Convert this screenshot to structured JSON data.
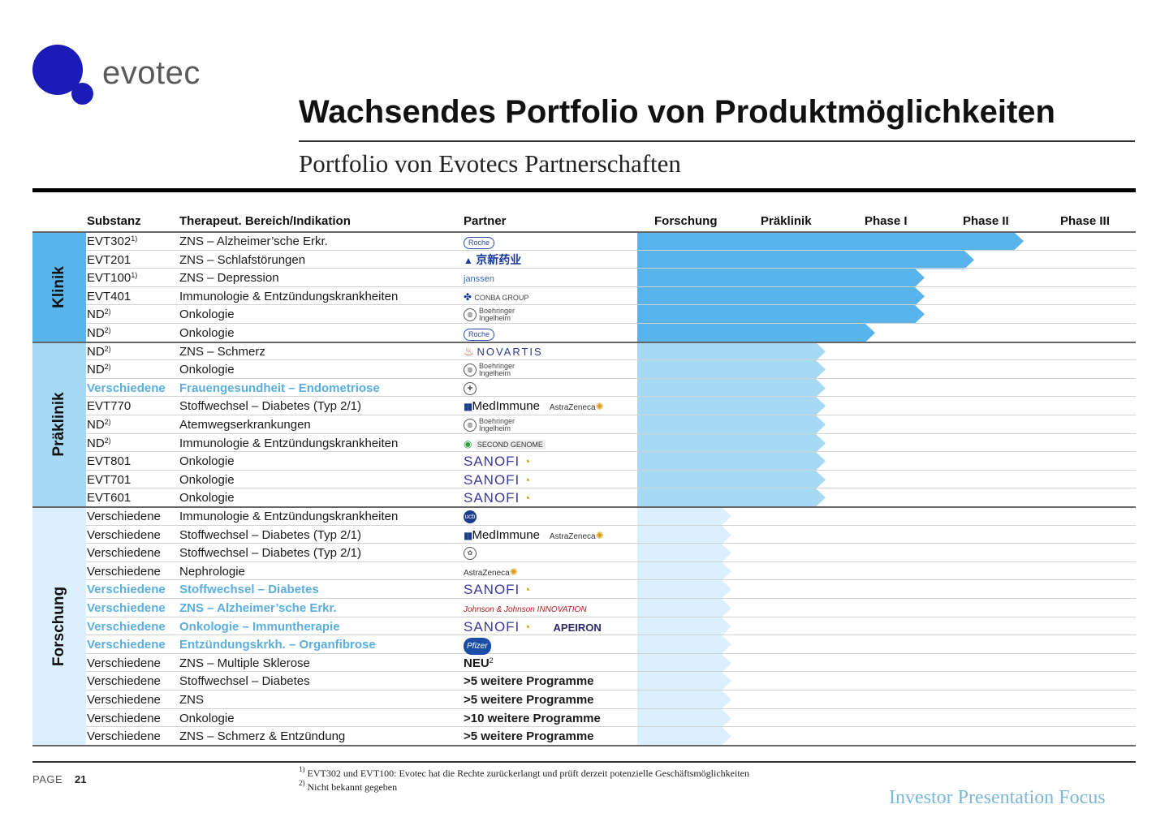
{
  "logo": {
    "text": "evotec",
    "color": "#1b1bb8"
  },
  "title": "Wachsendes Portfolio von Produktmöglichkeiten",
  "subtitle": "Portfolio von Evotecs Partnerschaften",
  "columns": {
    "substanz": "Substanz",
    "bereich": "Therapeut.  Bereich/Indikation",
    "partner": "Partner",
    "forschung": "Forschung",
    "praeklinik": "Präklinik",
    "phase1": "Phase I",
    "phase2": "Phase II",
    "phase3": "Phase III"
  },
  "phase_scale": [
    "Forschung",
    "Präklinik",
    "Phase I",
    "Phase II",
    "Phase III"
  ],
  "colors": {
    "klinik": "#59b4ec",
    "praeklinik": "#a6d9f4",
    "forschung": "#dbeffc",
    "highlight": "#5aaee0"
  },
  "sections": [
    {
      "label": "Klinik",
      "key": "klinik"
    },
    {
      "label": "Präklinik",
      "key": "praeklinik"
    },
    {
      "label": "Forschung",
      "key": "forschung"
    }
  ],
  "rows": [
    {
      "section": "klinik",
      "substanz": "EVT302",
      "sup": "1)",
      "bereich": "ZNS – Alzheimer’sche Erkr.",
      "partner": "Roche",
      "partner_style": "roche",
      "progress": 3.9,
      "highlight": false
    },
    {
      "section": "klinik",
      "substanz": "EVT201",
      "sup": "",
      "bereich": "ZNS – Schlafstörungen",
      "partner": "京新药业",
      "partner_style": "jingxin",
      "progress": 3.4,
      "highlight": false
    },
    {
      "section": "klinik",
      "substanz": "EVT100",
      "sup": "1)",
      "bereich": "ZNS – Depression",
      "partner": "janssen",
      "partner_style": "janssen",
      "progress": 2.9,
      "highlight": false
    },
    {
      "section": "klinik",
      "substanz": "EVT401",
      "sup": "",
      "bereich": "Immunologie & Entzündungskrankheiten",
      "partner": "CONBA GROUP",
      "partner_style": "conba",
      "progress": 2.9,
      "highlight": false
    },
    {
      "section": "klinik",
      "substanz": "ND",
      "sup": "2)",
      "bereich": "Onkologie",
      "partner": "Boehringer Ingelheim",
      "partner_style": "bi",
      "progress": 2.9,
      "highlight": false
    },
    {
      "section": "klinik",
      "substanz": "ND",
      "sup": "2)",
      "bereich": "Onkologie",
      "partner": "Roche",
      "partner_style": "roche",
      "progress": 2.4,
      "highlight": false
    },
    {
      "section": "praeklinik",
      "substanz": "ND",
      "sup": "2)",
      "bereich": "ZNS – Schmerz",
      "partner": "NOVARTIS",
      "partner_style": "novartis",
      "progress": 1.9,
      "highlight": false
    },
    {
      "section": "praeklinik",
      "substanz": "ND",
      "sup": "2)",
      "bereich": "Onkologie",
      "partner": "Boehringer Ingelheim",
      "partner_style": "bi",
      "progress": 1.9,
      "highlight": false
    },
    {
      "section": "praeklinik",
      "substanz": "Verschiedene",
      "sup": "",
      "bereich": "Frauengesundheit – Endometriose",
      "partner": "Bayer",
      "partner_style": "bayer",
      "progress": 1.9,
      "highlight": true
    },
    {
      "section": "praeklinik",
      "substanz": "EVT770",
      "sup": "",
      "bereich": "Stoffwechsel – Diabetes (Typ 2/1)",
      "partner": "MedImmune",
      "partner2": "AstraZeneca",
      "partner_style": "medaz",
      "progress": 1.9,
      "highlight": false
    },
    {
      "section": "praeklinik",
      "substanz": "ND",
      "sup": "2)",
      "bereich": "Atemwegserkrankungen",
      "partner": "Boehringer Ingelheim",
      "partner_style": "bi",
      "progress": 1.9,
      "highlight": false
    },
    {
      "section": "praeklinik",
      "substanz": "ND",
      "sup": "2)",
      "bereich": "Immunologie & Entzündungskrankheiten",
      "partner": "SECOND GENOME",
      "partner_style": "second",
      "progress": 1.9,
      "highlight": false
    },
    {
      "section": "praeklinik",
      "substanz": "EVT801",
      "sup": "",
      "bereich": "Onkologie",
      "partner": "SANOFI",
      "partner_style": "sanofi",
      "progress": 1.9,
      "highlight": false
    },
    {
      "section": "praeklinik",
      "substanz": "EVT701",
      "sup": "",
      "bereich": "Onkologie",
      "partner": "SANOFI",
      "partner_style": "sanofi",
      "progress": 1.9,
      "highlight": false
    },
    {
      "section": "praeklinik",
      "substanz": "EVT601",
      "sup": "",
      "bereich": "Onkologie",
      "partner": "SANOFI",
      "partner_style": "sanofi",
      "progress": 1.9,
      "highlight": false
    },
    {
      "section": "forschung",
      "substanz": "Verschiedene",
      "sup": "",
      "bereich": "Immunologie & Entzündungskrankheiten",
      "partner": "ucb",
      "partner_style": "ucb",
      "progress": 0.95,
      "highlight": false
    },
    {
      "section": "forschung",
      "substanz": "Verschiedene",
      "sup": "",
      "bereich": "Stoffwechsel – Diabetes (Typ 2/1)",
      "partner": "MedImmune",
      "partner2": "AstraZeneca",
      "partner_style": "medaz",
      "progress": 0.95,
      "highlight": false
    },
    {
      "section": "forschung",
      "substanz": "Verschiedene",
      "sup": "",
      "bereich": "Stoffwechsel – Diabetes (Typ 2/1)",
      "partner": "",
      "partner_style": "seal",
      "progress": 0.95,
      "highlight": false
    },
    {
      "section": "forschung",
      "substanz": "Verschiedene",
      "sup": "",
      "bereich": "Nephrologie",
      "partner": "AstraZeneca",
      "partner_style": "az",
      "progress": 0.95,
      "highlight": false
    },
    {
      "section": "forschung",
      "substanz": "Verschiedene",
      "sup": "",
      "bereich": "Stoffwechsel – Diabetes",
      "partner": "SANOFI",
      "partner_style": "sanofi",
      "progress": 0.95,
      "highlight": true
    },
    {
      "section": "forschung",
      "substanz": "Verschiedene",
      "sup": "",
      "bereich": "ZNS – Alzheimer’sche Erkr.",
      "partner": "Johnson & Johnson INNOVATION",
      "partner_style": "jj",
      "progress": 0.95,
      "highlight": true
    },
    {
      "section": "forschung",
      "substanz": "Verschiedene",
      "sup": "",
      "bereich": "Onkologie – Immuntherapie",
      "partner": "SANOFI",
      "partner2": "APEIRON",
      "partner_style": "sanofi_apeiron",
      "progress": 0.95,
      "highlight": true
    },
    {
      "section": "forschung",
      "substanz": "Verschiedene",
      "sup": "",
      "bereich": "Entzündungskrkh. – Organfibrose",
      "partner": "Pfizer",
      "partner_style": "pfizer",
      "progress": 0.95,
      "highlight": true
    },
    {
      "section": "forschung",
      "substanz": "Verschiedene",
      "sup": "",
      "bereich": "ZNS – Multiple Sklerose",
      "partner": "NEU",
      "partner_sup": "2",
      "partner_style": "bold",
      "progress": 0.95,
      "highlight": false
    },
    {
      "section": "forschung",
      "substanz": "Verschiedene",
      "sup": "",
      "bereich": "Stoffwechsel – Diabetes",
      "partner": ">5 weitere Programme",
      "partner_style": "bold",
      "progress": 0.95,
      "highlight": false
    },
    {
      "section": "forschung",
      "substanz": "Verschiedene",
      "sup": "",
      "bereich": "ZNS",
      "partner": ">5 weitere Programme",
      "partner_style": "bold",
      "progress": 0.95,
      "highlight": false
    },
    {
      "section": "forschung",
      "substanz": "Verschiedene",
      "sup": "",
      "bereich": "Onkologie",
      "partner": ">10 weitere Programme",
      "partner_style": "bold",
      "progress": 0.95,
      "highlight": false
    },
    {
      "section": "forschung",
      "substanz": "Verschiedene",
      "sup": "",
      "bereich": "ZNS – Schmerz & Entzündung",
      "partner": ">5 weitere Programme",
      "partner_style": "bold",
      "progress": 0.95,
      "highlight": false
    }
  ],
  "footer": {
    "page_label": "PAGE",
    "page_number": "21",
    "note1_marker": "1)",
    "note1": "EVT302 und EVT100: Evotec hat die Rechte zurückerlangt und prüft derzeit potenzielle Geschäftsmöglichkeiten",
    "note2_marker": "2)",
    "note2": "Nicht bekannt gegeben",
    "tagline": "Investor Presentation Focus"
  }
}
